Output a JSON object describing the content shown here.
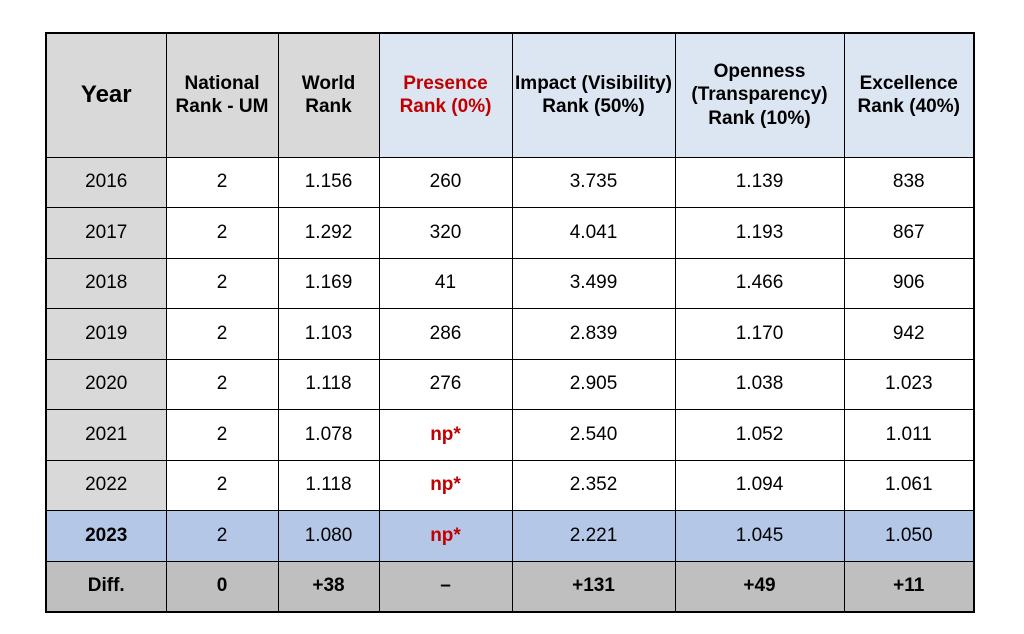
{
  "table": {
    "headers": [
      "Year",
      "National Rank - UM",
      "World Rank",
      "Presence Rank (0%)",
      "Impact (Visibility) Rank (50%)",
      "Openness (Transparency) Rank (10%)",
      "Excellence Rank (40%)"
    ],
    "rows": [
      [
        "2016",
        "2",
        "1.156",
        "260",
        "3.735",
        "1.139",
        "838"
      ],
      [
        "2017",
        "2",
        "1.292",
        "320",
        "4.041",
        "1.193",
        "867"
      ],
      [
        "2018",
        "2",
        "1.169",
        "41",
        "3.499",
        "1.466",
        "906"
      ],
      [
        "2019",
        "2",
        "1.103",
        "286",
        "2.839",
        "1.170",
        "942"
      ],
      [
        "2020",
        "2",
        "1.118",
        "276",
        "2.905",
        "1.038",
        "1.023"
      ],
      [
        "2021",
        "2",
        "1.078",
        "np*",
        "2.540",
        "1.052",
        "1.011"
      ],
      [
        "2022",
        "2",
        "1.118",
        "np*",
        "2.352",
        "1.094",
        "1.061"
      ],
      [
        "2023",
        "2",
        "1.080",
        "np*",
        "2.221",
        "1.045",
        "1.050"
      ]
    ],
    "diff_row": [
      "Diff.",
      "0",
      "+38",
      "–",
      "+131",
      "+49",
      "+11"
    ]
  },
  "colors": {
    "header_blue": "#dce6f2",
    "header_grey": "#d9d9d9",
    "highlight_red": "#c00000",
    "current_year_row": "#b4c7e7",
    "diff_row": "#bfbfbf"
  }
}
